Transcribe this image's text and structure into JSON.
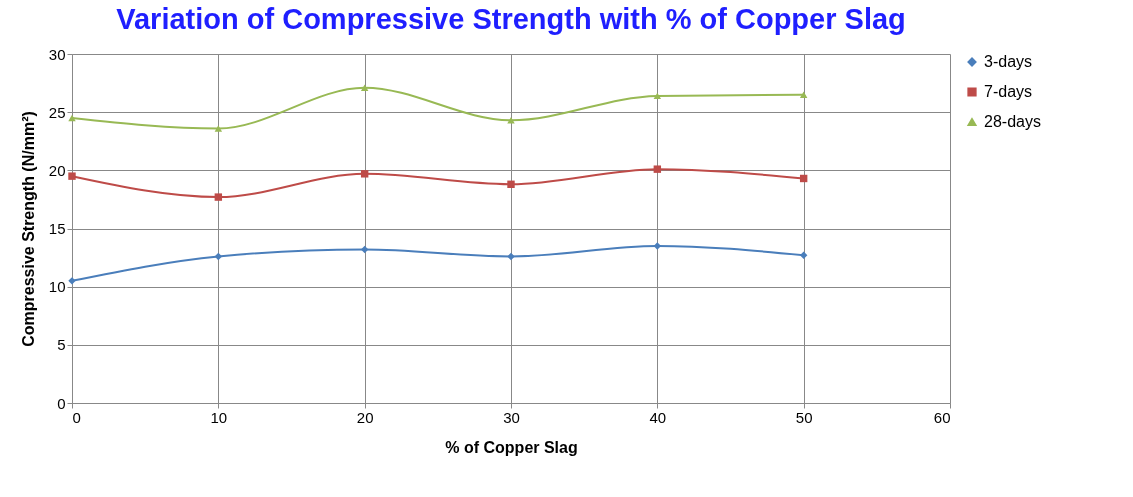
{
  "chart_data": {
    "type": "line",
    "title": "Variation of Compressive Strength with % of Copper Slag",
    "xlabel": "% of Copper Slag",
    "ylabel": "Compressive Strength (N/mm²)",
    "x": [
      0,
      10,
      20,
      30,
      40,
      50
    ],
    "series": [
      {
        "name": "3-days",
        "color": "#4a7ebb",
        "marker": "diamond",
        "values": [
          10.5,
          12.6,
          13.2,
          12.6,
          13.5,
          12.7
        ]
      },
      {
        "name": "7-days",
        "color": "#be4b48",
        "marker": "square",
        "values": [
          19.5,
          17.7,
          19.7,
          18.8,
          20.1,
          19.3
        ]
      },
      {
        "name": "28-days",
        "color": "#98b954",
        "marker": "triangle",
        "values": [
          24.5,
          23.6,
          27.1,
          24.3,
          26.4,
          26.5
        ]
      }
    ],
    "xlim": [
      0,
      60
    ],
    "xticks": [
      0,
      10,
      20,
      30,
      40,
      50,
      60
    ],
    "ylim": [
      0,
      30
    ],
    "yticks": [
      0,
      5,
      10,
      15,
      20,
      25,
      30
    ],
    "grid": true,
    "legend": "right",
    "line_style": "solid"
  }
}
